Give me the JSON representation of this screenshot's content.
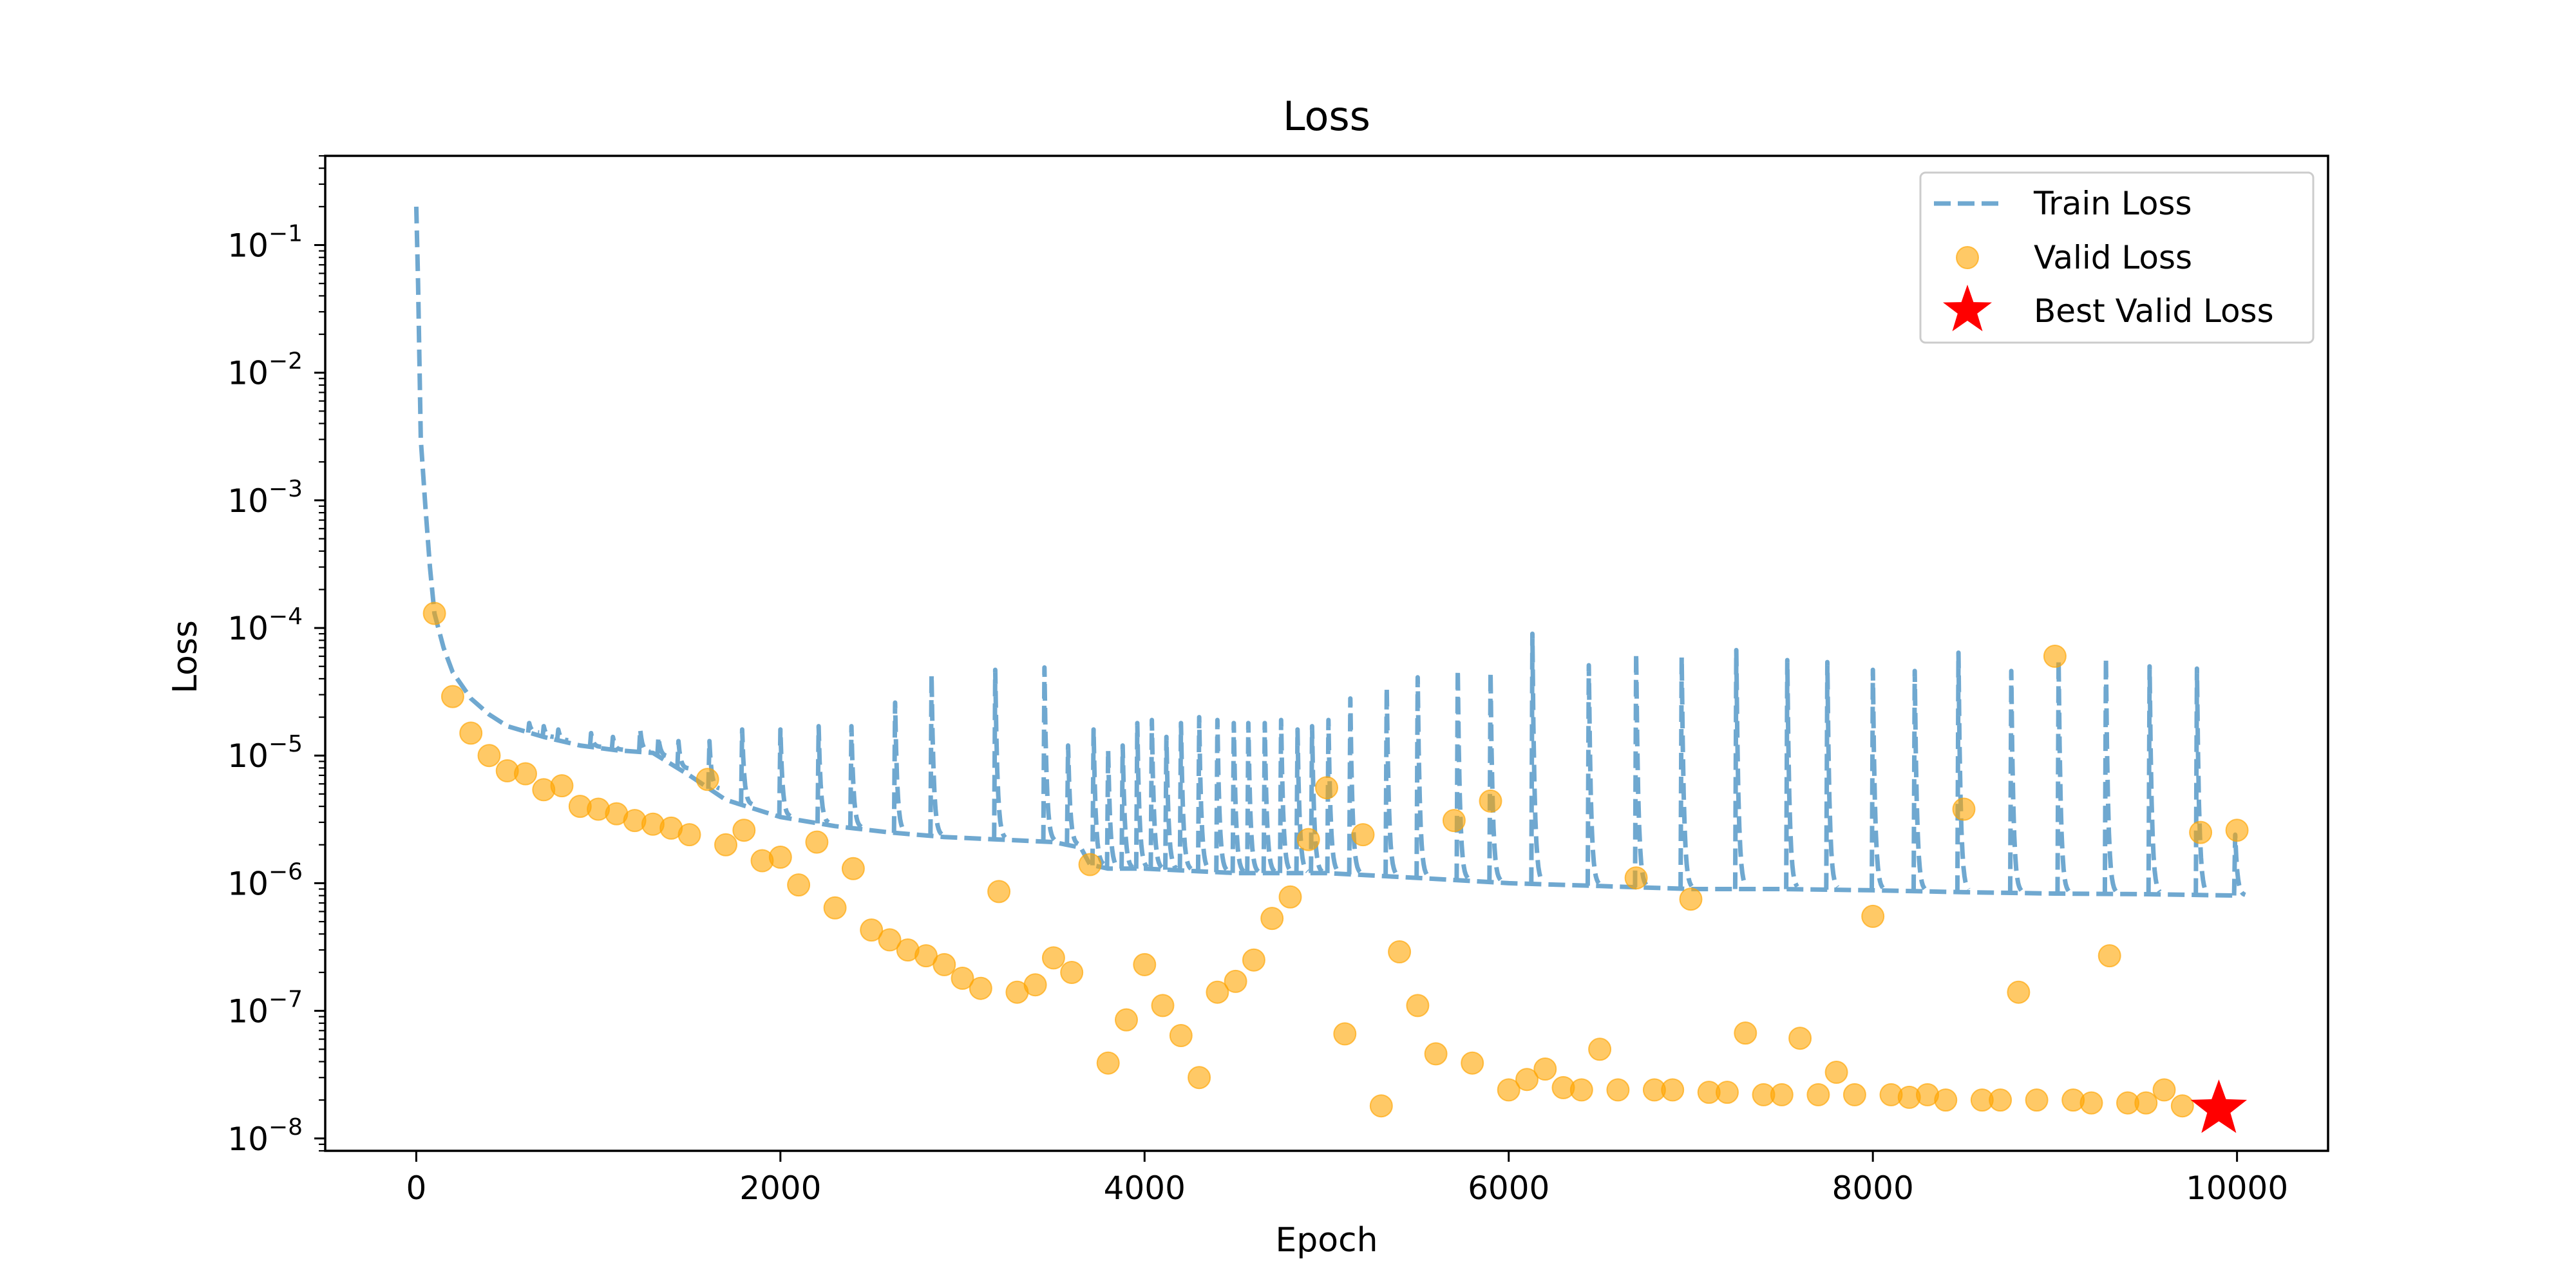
{
  "chart_data": {
    "type": "line",
    "title": "Loss",
    "xlabel": "Epoch",
    "ylabel": "Loss",
    "xlim": [
      -500,
      10500
    ],
    "ylim": [
      8e-09,
      0.5
    ],
    "yscale": "log",
    "grid": false,
    "legend": {
      "placement": "top-right",
      "entries": [
        "Train Loss",
        "Valid Loss",
        "Best Valid Loss"
      ]
    },
    "xticks": [
      {
        "value": 0,
        "label": "0"
      },
      {
        "value": 2000,
        "label": "2000"
      },
      {
        "value": 4000,
        "label": "4000"
      },
      {
        "value": 6000,
        "label": "6000"
      },
      {
        "value": 8000,
        "label": "8000"
      },
      {
        "value": 10000,
        "label": "10000"
      }
    ],
    "yticks": [
      {
        "value": 1e-08,
        "base": "10",
        "exp": "−8"
      },
      {
        "value": 1e-07,
        "base": "10",
        "exp": "−7"
      },
      {
        "value": 1e-06,
        "base": "10",
        "exp": "−6"
      },
      {
        "value": 1e-05,
        "base": "10",
        "exp": "−5"
      },
      {
        "value": 0.0001,
        "base": "10",
        "exp": "−4"
      },
      {
        "value": 0.001,
        "base": "10",
        "exp": "−3"
      },
      {
        "value": 0.01,
        "base": "10",
        "exp": "−2"
      },
      {
        "value": 0.1,
        "base": "10",
        "exp": "−1"
      }
    ],
    "series": [
      {
        "name": "Train Loss",
        "kind": "line",
        "style": "dashed",
        "color": "#6fa8d0",
        "x": [
          0,
          10,
          25,
          50,
          75,
          100,
          150,
          200,
          300,
          400,
          500,
          700,
          900,
          1100,
          1300,
          1500,
          1700,
          2000,
          2300,
          2600,
          2900,
          3200,
          3500,
          3650,
          3700,
          3800,
          4000,
          4500,
          5000,
          5500,
          6000,
          6500,
          7000,
          7500,
          8000,
          8500,
          9000,
          9500,
          10000
        ],
        "y": [
          0.2,
          0.05,
          0.003,
          0.0009,
          0.0003,
          0.00013,
          7e-05,
          4.5e-05,
          2.8e-05,
          2.1e-05,
          1.7e-05,
          1.4e-05,
          1.2e-05,
          1.1e-05,
          1.05e-05,
          7e-06,
          4.5e-06,
          3.3e-06,
          2.8e-06,
          2.5e-06,
          2.3e-06,
          2.2e-06,
          2.1e-06,
          1.9e-06,
          1.4e-06,
          1.3e-06,
          1.3e-06,
          1.2e-06,
          1.2e-06,
          1.1e-06,
          1e-06,
          9.5e-07,
          9e-07,
          9e-07,
          8.8e-07,
          8.5e-07,
          8.3e-07,
          8.2e-07,
          8e-07
        ],
        "spikes": [
          {
            "x": 620,
            "y": 1.8e-05
          },
          {
            "x": 700,
            "y": 1.7e-05
          },
          {
            "x": 780,
            "y": 1.6e-05
          },
          {
            "x": 960,
            "y": 1.5e-05
          },
          {
            "x": 1080,
            "y": 1.4e-05
          },
          {
            "x": 1230,
            "y": 1.6e-05
          },
          {
            "x": 1330,
            "y": 1.4e-05
          },
          {
            "x": 1440,
            "y": 1.3e-05
          },
          {
            "x": 1610,
            "y": 1.3e-05
          },
          {
            "x": 1790,
            "y": 1.6e-05
          },
          {
            "x": 2000,
            "y": 1.6e-05
          },
          {
            "x": 2210,
            "y": 1.7e-05
          },
          {
            "x": 2390,
            "y": 1.7e-05
          },
          {
            "x": 2630,
            "y": 2.6e-05
          },
          {
            "x": 2830,
            "y": 4.3e-05
          },
          {
            "x": 3180,
            "y": 4.7e-05
          },
          {
            "x": 3450,
            "y": 4.9e-05
          },
          {
            "x": 3580,
            "y": 1.2e-05
          },
          {
            "x": 3720,
            "y": 1.6e-05
          },
          {
            "x": 3800,
            "y": 1.1e-05
          },
          {
            "x": 3880,
            "y": 1.2e-05
          },
          {
            "x": 3960,
            "y": 1.8e-05
          },
          {
            "x": 4040,
            "y": 1.9e-05
          },
          {
            "x": 4120,
            "y": 1.4e-05
          },
          {
            "x": 4200,
            "y": 1.8e-05
          },
          {
            "x": 4300,
            "y": 2e-05
          },
          {
            "x": 4400,
            "y": 1.9e-05
          },
          {
            "x": 4490,
            "y": 1.8e-05
          },
          {
            "x": 4570,
            "y": 1.8e-05
          },
          {
            "x": 4660,
            "y": 1.8e-05
          },
          {
            "x": 4750,
            "y": 1.9e-05
          },
          {
            "x": 4840,
            "y": 1.6e-05
          },
          {
            "x": 4920,
            "y": 1.7e-05
          },
          {
            "x": 5010,
            "y": 1.9e-05
          },
          {
            "x": 5130,
            "y": 2.8e-05
          },
          {
            "x": 5330,
            "y": 3.4e-05
          },
          {
            "x": 5500,
            "y": 4.1e-05
          },
          {
            "x": 5720,
            "y": 4.7e-05
          },
          {
            "x": 5900,
            "y": 4.5e-05
          },
          {
            "x": 6130,
            "y": 9e-05
          },
          {
            "x": 6440,
            "y": 5.1e-05
          },
          {
            "x": 6700,
            "y": 6.3e-05
          },
          {
            "x": 6950,
            "y": 5.9e-05
          },
          {
            "x": 7250,
            "y": 6.7e-05
          },
          {
            "x": 7530,
            "y": 5.6e-05
          },
          {
            "x": 7750,
            "y": 5.4e-05
          },
          {
            "x": 8000,
            "y": 4.7e-05
          },
          {
            "x": 8230,
            "y": 4.6e-05
          },
          {
            "x": 8470,
            "y": 6.4e-05
          },
          {
            "x": 8760,
            "y": 4.6e-05
          },
          {
            "x": 9020,
            "y": 5.6e-05
          },
          {
            "x": 9280,
            "y": 5.8e-05
          },
          {
            "x": 9520,
            "y": 5e-05
          },
          {
            "x": 9780,
            "y": 4.8e-05
          },
          {
            "x": 9990,
            "y": 2.4e-06
          }
        ]
      },
      {
        "name": "Valid Loss",
        "kind": "scatter",
        "color": "#ffa500",
        "x": [
          100,
          200,
          300,
          400,
          500,
          600,
          700,
          800,
          900,
          1000,
          1100,
          1200,
          1300,
          1400,
          1500,
          1600,
          1700,
          1800,
          1900,
          2000,
          2100,
          2200,
          2300,
          2400,
          2500,
          2600,
          2700,
          2800,
          2900,
          3000,
          3100,
          3200,
          3300,
          3400,
          3500,
          3600,
          3700,
          3800,
          3900,
          4000,
          4100,
          4200,
          4300,
          4400,
          4500,
          4600,
          4700,
          4800,
          4900,
          5000,
          5100,
          5200,
          5300,
          5400,
          5500,
          5600,
          5700,
          5800,
          5900,
          6000,
          6100,
          6200,
          6300,
          6400,
          6500,
          6600,
          6700,
          6800,
          6900,
          7000,
          7100,
          7200,
          7300,
          7400,
          7500,
          7600,
          7700,
          7800,
          7900,
          8000,
          8100,
          8200,
          8300,
          8400,
          8500,
          8600,
          8700,
          8800,
          8900,
          9000,
          9100,
          9200,
          9300,
          9400,
          9500,
          9600,
          9700,
          9800,
          10000
        ],
        "y": [
          0.00013,
          2.9e-05,
          1.5e-05,
          1e-05,
          7.6e-06,
          7.2e-06,
          5.4e-06,
          5.8e-06,
          4e-06,
          3.8e-06,
          3.5e-06,
          3.1e-06,
          2.9e-06,
          2.7e-06,
          2.4e-06,
          6.5e-06,
          2e-06,
          2.6e-06,
          1.5e-06,
          1.6e-06,
          9.7e-07,
          2.1e-06,
          6.4e-07,
          1.3e-06,
          4.3e-07,
          3.6e-07,
          3e-07,
          2.7e-07,
          2.3e-07,
          1.8e-07,
          1.5e-07,
          8.6e-07,
          1.4e-07,
          1.6e-07,
          2.6e-07,
          2e-07,
          1.4e-06,
          3.9e-08,
          8.5e-08,
          2.3e-07,
          1.1e-07,
          6.4e-08,
          3e-08,
          1.4e-07,
          1.7e-07,
          2.5e-07,
          5.3e-07,
          7.8e-07,
          2.2e-06,
          5.6e-06,
          6.6e-08,
          2.4e-06,
          1.8e-08,
          2.9e-07,
          1.1e-07,
          4.6e-08,
          3.1e-06,
          3.9e-08,
          4.4e-06,
          2.4e-08,
          2.9e-08,
          3.5e-08,
          2.5e-08,
          2.4e-08,
          5e-08,
          2.4e-08,
          1.1e-06,
          2.4e-08,
          2.4e-08,
          7.5e-07,
          2.3e-08,
          2.3e-08,
          6.7e-08,
          2.2e-08,
          2.2e-08,
          6.1e-08,
          2.2e-08,
          3.3e-08,
          2.2e-08,
          5.5e-07,
          2.2e-08,
          2.1e-08,
          2.2e-08,
          2e-08,
          3.8e-06,
          2e-08,
          2e-08,
          1.4e-07,
          2e-08,
          6e-05,
          2e-08,
          1.9e-08,
          2.7e-07,
          1.9e-08,
          1.9e-08,
          2.4e-08,
          1.8e-08,
          2.5e-06,
          2.6e-06
        ]
      },
      {
        "name": "Best Valid Loss",
        "kind": "marker",
        "marker": "star",
        "color": "#ff0000",
        "x": [
          9900
        ],
        "y": [
          1.7e-08
        ]
      }
    ]
  }
}
